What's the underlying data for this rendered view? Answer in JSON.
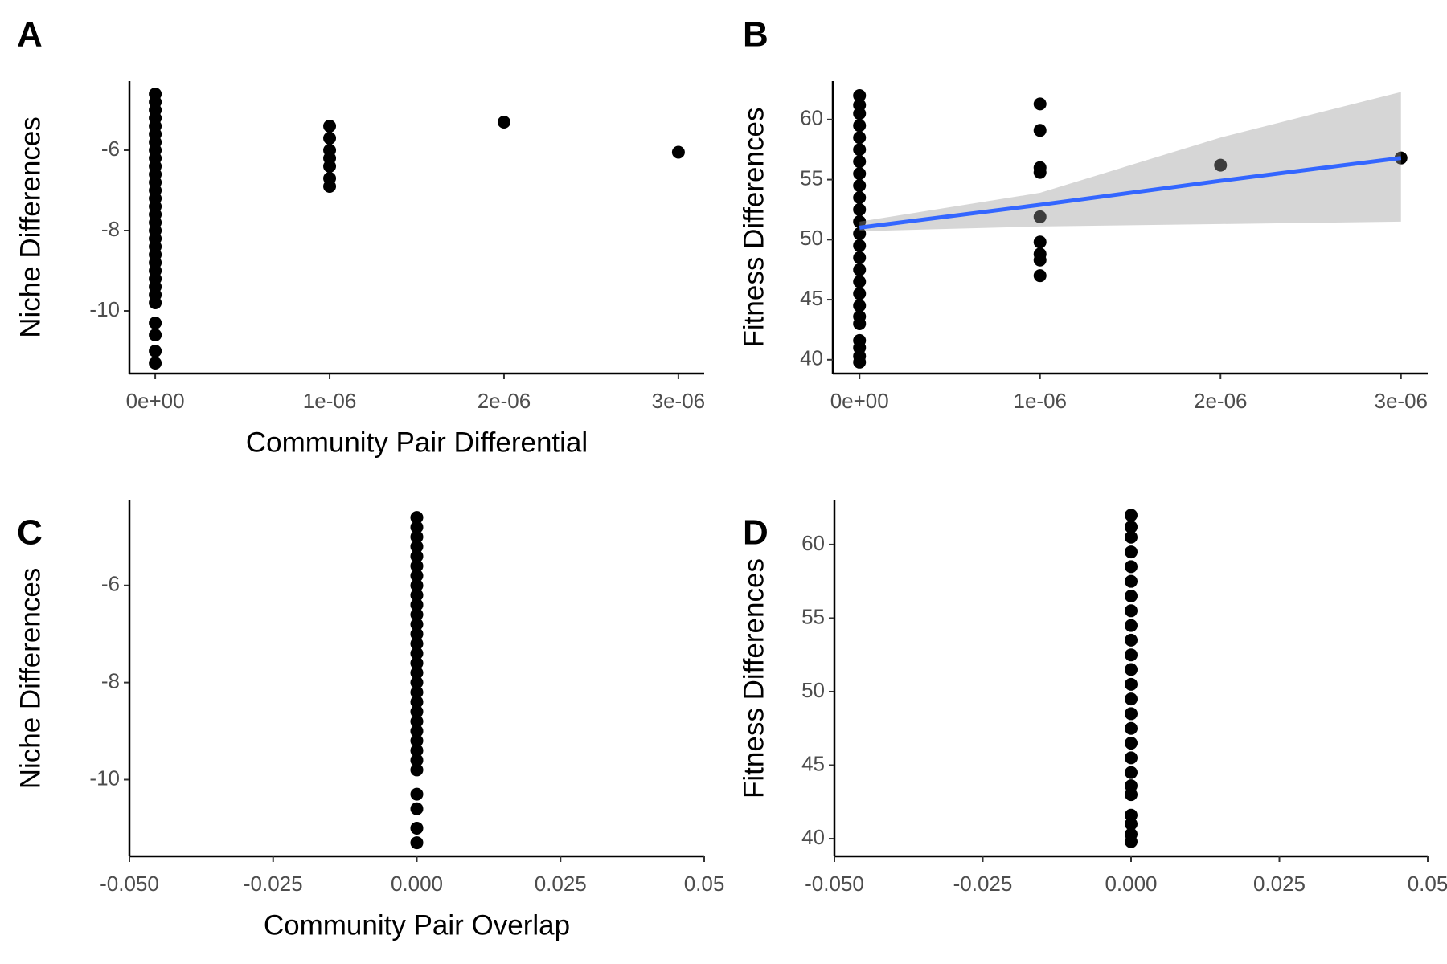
{
  "chart_data": [
    {
      "type": "scatter",
      "label": "A",
      "x_label": "Community Pair Differential",
      "y_label": "Niche Differences",
      "color": "#000000",
      "x": [
        0,
        0,
        0,
        0,
        0,
        0,
        0,
        0,
        0,
        0,
        0,
        0,
        0,
        0,
        0,
        0,
        0,
        0,
        0,
        0,
        0,
        0,
        0,
        0,
        0,
        0,
        0,
        0,
        0,
        0,
        0,
        1e-06,
        1e-06,
        1e-06,
        1e-06,
        1e-06,
        1e-06,
        1e-06,
        2e-06,
        3e-06
      ],
      "values": [
        -4.6,
        -4.8,
        -5.0,
        -5.2,
        -5.4,
        -5.6,
        -5.8,
        -6.0,
        -6.2,
        -6.4,
        -6.6,
        -6.8,
        -7.0,
        -7.2,
        -7.4,
        -7.6,
        -7.8,
        -8.0,
        -8.2,
        -8.4,
        -8.6,
        -8.8,
        -9.0,
        -9.2,
        -9.4,
        -9.6,
        -9.8,
        -10.3,
        -10.6,
        -11.0,
        -11.3,
        -5.4,
        -5.7,
        -6.0,
        -6.2,
        -6.4,
        -6.7,
        -6.9,
        -5.3,
        -6.05
      ],
      "xlim": [
        -1.48e-07,
        3.148e-06
      ],
      "xticks": [
        {
          "value": 0,
          "label": "0e+00"
        },
        {
          "value": 1e-06,
          "label": "1e-06"
        },
        {
          "value": 2e-06,
          "label": "2e-06"
        },
        {
          "value": 3e-06,
          "label": "3e-06"
        }
      ],
      "ylim": [
        -11.56,
        -4.28
      ],
      "yticks": [
        -10,
        -8,
        -6
      ]
    },
    {
      "type": "scatter",
      "label": "B",
      "y_label": "Fitness Differences",
      "color": "#000000",
      "x": [
        0,
        0,
        0,
        0,
        0,
        0,
        0,
        0,
        0,
        0,
        0,
        0,
        0,
        0,
        0,
        0,
        0,
        0,
        0,
        0,
        0,
        0,
        0,
        0,
        0,
        1e-06,
        1e-06,
        1e-06,
        1e-06,
        1e-06,
        1e-06,
        1e-06,
        1e-06,
        1e-06,
        2e-06,
        3e-06
      ],
      "values": [
        39.8,
        40.3,
        41.0,
        41.6,
        43.0,
        43.6,
        44.5,
        45.5,
        46.5,
        47.5,
        48.5,
        49.5,
        50.5,
        51.5,
        52.5,
        53.5,
        54.5,
        55.5,
        56.5,
        57.5,
        58.5,
        59.5,
        60.5,
        61.2,
        62.0,
        61.3,
        59.1,
        56.0,
        55.6,
        51.9,
        49.8,
        48.8,
        48.3,
        47.0,
        56.2,
        56.8
      ],
      "xlim": [
        -1.48e-07,
        3.148e-06
      ],
      "xticks": [
        {
          "value": 0,
          "label": "0e+00"
        },
        {
          "value": 1e-06,
          "label": "1e-06"
        },
        {
          "value": 2e-06,
          "label": "2e-06"
        },
        {
          "value": 3e-06,
          "label": "3e-06"
        }
      ],
      "ylim": [
        38.85,
        63.2
      ],
      "yticks": [
        40,
        45,
        50,
        55,
        60
      ],
      "fit": {
        "x": [
          0,
          1e-06,
          2e-06,
          3e-06
        ],
        "values": [
          51.0,
          52.9,
          54.9,
          56.8
        ],
        "lower": [
          50.7,
          51.1,
          51.3,
          51.5
        ],
        "upper": [
          51.5,
          53.9,
          58.5,
          62.3
        ],
        "color": "#3366ff",
        "band_color": "#999999"
      }
    },
    {
      "type": "scatter",
      "label": "C",
      "x_label": "Community Pair Overlap",
      "y_label": "Niche Differences",
      "color": "#000000",
      "x": [
        0,
        0,
        0,
        0,
        0,
        0,
        0,
        0,
        0,
        0,
        0,
        0,
        0,
        0,
        0,
        0,
        0,
        0,
        0,
        0,
        0,
        0,
        0,
        0,
        0,
        0,
        0,
        0,
        0,
        0,
        0
      ],
      "values": [
        -4.6,
        -4.8,
        -5.0,
        -5.2,
        -5.4,
        -5.6,
        -5.8,
        -6.0,
        -6.2,
        -6.4,
        -6.6,
        -6.8,
        -7.0,
        -7.2,
        -7.4,
        -7.6,
        -7.8,
        -8.0,
        -8.2,
        -8.4,
        -8.6,
        -8.8,
        -9.0,
        -9.2,
        -9.4,
        -9.6,
        -9.8,
        -10.3,
        -10.6,
        -11.0,
        -11.3
      ],
      "xlim": [
        -0.05,
        0.05
      ],
      "xticks": [
        {
          "value": -0.05,
          "label": "-0.050"
        },
        {
          "value": -0.025,
          "label": "-0.025"
        },
        {
          "value": 0,
          "label": "0.000"
        },
        {
          "value": 0.025,
          "label": "0.025"
        },
        0.05
      ],
      "ylim": [
        -11.58,
        -4.25
      ],
      "yticks": [
        -10,
        -8,
        -6
      ]
    },
    {
      "type": "scatter",
      "label": "D",
      "y_label": "Fitness Differences",
      "color": "#000000",
      "x": [
        0,
        0,
        0,
        0,
        0,
        0,
        0,
        0,
        0,
        0,
        0,
        0,
        0,
        0,
        0,
        0,
        0,
        0,
        0,
        0,
        0,
        0,
        0,
        0,
        0
      ],
      "values": [
        39.8,
        40.3,
        41.0,
        41.6,
        43.0,
        43.6,
        44.5,
        45.5,
        46.5,
        47.5,
        48.5,
        49.5,
        50.5,
        51.5,
        52.5,
        53.5,
        54.5,
        55.5,
        56.5,
        57.5,
        58.5,
        59.5,
        60.5,
        61.2,
        62.0
      ],
      "xlim": [
        -0.05,
        0.05
      ],
      "xticks": [
        {
          "value": -0.05,
          "label": "-0.050"
        },
        {
          "value": -0.025,
          "label": "-0.025"
        },
        {
          "value": 0,
          "label": "0.000"
        },
        {
          "value": 0.025,
          "label": "0.025"
        },
        0.05
      ],
      "ylim": [
        38.8,
        63.0
      ],
      "yticks": [
        40,
        45,
        50,
        55,
        60
      ]
    }
  ]
}
